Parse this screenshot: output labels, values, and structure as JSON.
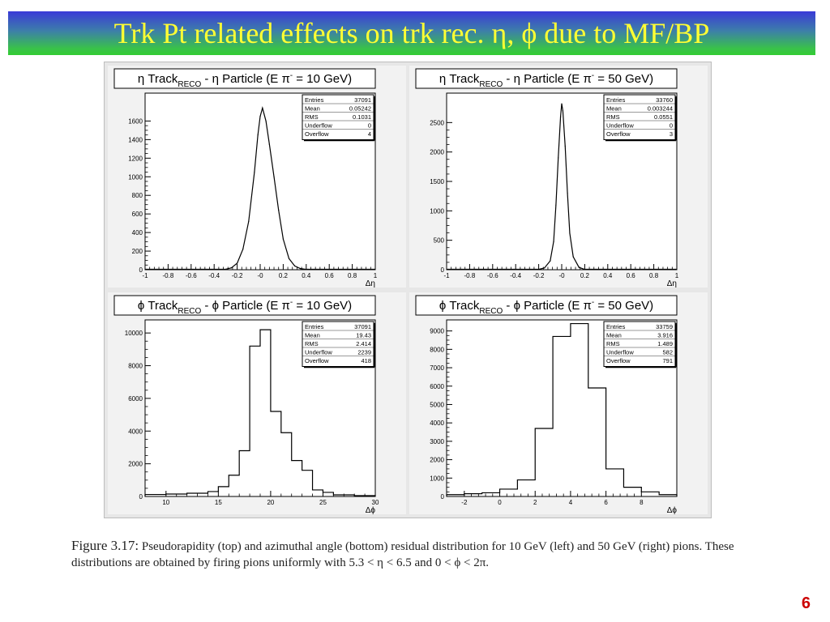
{
  "slide": {
    "title": "Trk Pt related effects on trk rec. η, ϕ due to MF/BP",
    "page_number": "6"
  },
  "caption": {
    "label": "Figure 3.17:",
    "text": "Pseudorapidity (top) and azimuthal angle (bottom) residual distribution for 10 GeV (left) and 50 GeV (right) pions. These distributions are obtained by firing pions uniformly with 5.3 < η < 6.5 and 0 < ϕ < 2π."
  },
  "chart_data": [
    {
      "type": "bar",
      "style": "histogram-line",
      "title_parts": {
        "pre": "η Track",
        "sub": "RECO",
        "mid": " - η Particle (E π",
        "sup": "-",
        "post": " = 10 GeV)"
      },
      "xlabel": "Δη",
      "xlim": [
        -1,
        1
      ],
      "ylim": [
        0,
        1900
      ],
      "xticks": [
        "-1",
        "-0.8",
        "-0.6",
        "-0.4",
        "-0.2",
        "-0",
        "0.2",
        "0.4",
        "0.6",
        "0.8",
        "1"
      ],
      "yticks": [
        "0",
        "200",
        "400",
        "600",
        "800",
        "1000",
        "1200",
        "1400",
        "1600"
      ],
      "stats": [
        [
          "Entries",
          "37091"
        ],
        [
          "Mean",
          "0.05242"
        ],
        [
          "RMS",
          "0.1031"
        ],
        [
          "Underflow",
          "0"
        ],
        [
          "Overflow",
          "4"
        ]
      ],
      "x": [
        -0.3,
        -0.25,
        -0.2,
        -0.15,
        -0.1,
        -0.05,
        -0.02,
        0,
        0.02,
        0.05,
        0.08,
        0.12,
        0.16,
        0.2,
        0.25,
        0.3,
        0.35,
        0.4
      ],
      "values": [
        5,
        20,
        70,
        220,
        520,
        1050,
        1450,
        1650,
        1740,
        1600,
        1350,
        1000,
        640,
        330,
        120,
        40,
        12,
        3
      ]
    },
    {
      "type": "bar",
      "style": "histogram-line",
      "title_parts": {
        "pre": "η Track",
        "sub": "RECO",
        "mid": " - η Particle (E π",
        "sup": "-",
        "post": " = 50 GeV)"
      },
      "xlabel": "Δη",
      "xlim": [
        -1,
        1
      ],
      "ylim": [
        0,
        3000
      ],
      "xticks": [
        "-1",
        "-0.8",
        "-0.6",
        "-0.4",
        "-0.2",
        "-0",
        "0.2",
        "0.4",
        "0.6",
        "0.8",
        "1"
      ],
      "yticks": [
        "0",
        "500",
        "1000",
        "1500",
        "2000",
        "2500"
      ],
      "stats": [
        [
          "Entries",
          "33760"
        ],
        [
          "Mean",
          "0.003244"
        ],
        [
          "RMS",
          "0.0551"
        ],
        [
          "Underflow",
          "0"
        ],
        [
          "Overflow",
          "3"
        ]
      ],
      "x": [
        -0.2,
        -0.15,
        -0.1,
        -0.07,
        -0.05,
        -0.03,
        -0.01,
        0,
        0.01,
        0.03,
        0.05,
        0.07,
        0.1,
        0.15,
        0.2
      ],
      "values": [
        5,
        30,
        150,
        480,
        1100,
        1900,
        2600,
        2820,
        2700,
        2100,
        1300,
        620,
        220,
        40,
        5
      ]
    },
    {
      "type": "bar",
      "style": "histogram-line",
      "title_parts": {
        "pre": "ϕ Track",
        "sub": "RECO",
        "mid": " - ϕ Particle (E π",
        "sup": "-",
        "post": " = 10 GeV)"
      },
      "xlabel": "Δϕ",
      "xlim": [
        8,
        30
      ],
      "ylim": [
        0,
        10800
      ],
      "xticks": [
        "10",
        "15",
        "20",
        "25",
        "30"
      ],
      "xtick_values": [
        10,
        15,
        20,
        25,
        30
      ],
      "yticks": [
        "0",
        "2000",
        "4000",
        "6000",
        "8000",
        "10000"
      ],
      "ytick_values": [
        0,
        2000,
        4000,
        6000,
        8000,
        10000
      ],
      "stats": [
        [
          "Entries",
          "37091"
        ],
        [
          "Mean",
          "19.43"
        ],
        [
          "RMS",
          "2.414"
        ],
        [
          "Underflow",
          "2239"
        ],
        [
          "Overflow",
          "418"
        ]
      ],
      "bin_edges": [
        8,
        10,
        12,
        14,
        15,
        16,
        17,
        18,
        19,
        20,
        21,
        22,
        23,
        24,
        25,
        26,
        28,
        30
      ],
      "values": [
        120,
        150,
        200,
        300,
        600,
        1300,
        2800,
        9200,
        10200,
        5200,
        3900,
        2200,
        1600,
        400,
        250,
        100,
        50
      ]
    },
    {
      "type": "bar",
      "style": "histogram-line",
      "title_parts": {
        "pre": "ϕ Track",
        "sub": "RECO",
        "mid": " - ϕ Particle (E π",
        "sup": "-",
        "post": " = 50 GeV)"
      },
      "xlabel": "Δϕ",
      "xlim": [
        -3,
        10
      ],
      "ylim": [
        0,
        9600
      ],
      "xticks": [
        "-2",
        "0",
        "2",
        "4",
        "6",
        "8"
      ],
      "xtick_values": [
        -2,
        0,
        2,
        4,
        6,
        8
      ],
      "yticks": [
        "0",
        "1000",
        "2000",
        "3000",
        "4000",
        "5000",
        "6000",
        "7000",
        "8000",
        "9000"
      ],
      "ytick_values": [
        0,
        1000,
        2000,
        3000,
        4000,
        5000,
        6000,
        7000,
        8000,
        9000
      ],
      "stats": [
        [
          "Entries",
          "33759"
        ],
        [
          "Mean",
          "3.916"
        ],
        [
          "RMS",
          "1.489"
        ],
        [
          "Underflow",
          "582"
        ],
        [
          "Overflow",
          "791"
        ]
      ],
      "bin_edges": [
        -3,
        -2,
        -1,
        0,
        1,
        2,
        3,
        4,
        5,
        6,
        7,
        8,
        9,
        10
      ],
      "values": [
        100,
        150,
        200,
        400,
        900,
        3700,
        8700,
        9400,
        5900,
        1500,
        500,
        250,
        100
      ]
    }
  ]
}
